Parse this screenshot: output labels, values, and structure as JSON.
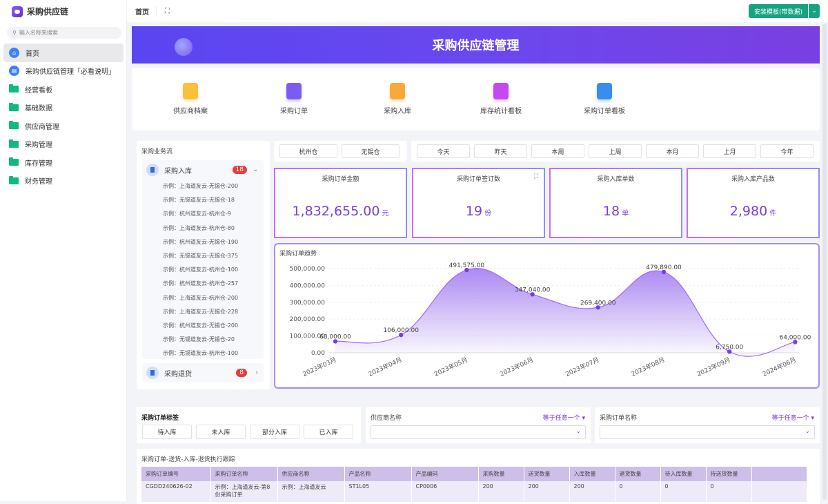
{
  "app": {
    "title": "采购供应链",
    "search_placeholder": "输入名称来搜索"
  },
  "sidebar": {
    "items": [
      {
        "label": "首页",
        "icon": "home-icon",
        "active": true
      },
      {
        "label": "采购供应链管理「必看说明」",
        "icon": "document-icon"
      },
      {
        "label": "经营看板",
        "icon": "folder-icon"
      },
      {
        "label": "基础数据",
        "icon": "folder-icon"
      },
      {
        "label": "供应商管理",
        "icon": "folder-icon"
      },
      {
        "label": "采购管理",
        "icon": "folder-icon"
      },
      {
        "label": "库存管理",
        "icon": "folder-icon"
      },
      {
        "label": "财务管理",
        "icon": "folder-icon"
      }
    ]
  },
  "header": {
    "tab": "首页",
    "install_button": "安装模板(带数据)"
  },
  "banner": {
    "title": "采购供应链管理"
  },
  "quick_links": [
    {
      "label": "供应商档案",
      "color": "#fbbf3c"
    },
    {
      "label": "采购订单",
      "color": "#7c5cf0"
    },
    {
      "label": "采购入库",
      "color": "#f9a93a"
    },
    {
      "label": "库存统计看板",
      "color": "#c449ef"
    },
    {
      "label": "采购订单看板",
      "color": "#3b8cf0"
    }
  ],
  "workflow": {
    "title": "采购业务流",
    "groups": [
      {
        "label": "采购入库",
        "count": "18",
        "items": [
          "示例：上海道友云-无锡仓-200",
          "示例：无锡道友云-无锡仓-18",
          "示例：杭州道友云-杭州仓-9",
          "示例：上海道友云-杭州仓-80",
          "示例：杭州道友云-无锡仓-190",
          "示例：无锡道友云-无锡仓-375",
          "示例：杭州道友云-杭州仓-100",
          "示例：杭州道友云-杭州仓-257",
          "示例：上海道友云-杭州仓-200",
          "示例：上海道友云-无锡仓-228",
          "示例：杭州道友云-无锡仓-200",
          "示例：无锡道友云-无锡仓-20",
          "示例：无锡道友云-杭州仓-100"
        ]
      },
      {
        "label": "采购退货",
        "count": "8"
      }
    ]
  },
  "warehouses": [
    "杭州仓",
    "无锡仓"
  ],
  "periods": [
    "今天",
    "昨天",
    "本周",
    "上周",
    "本月",
    "上月",
    "今年"
  ],
  "kpis": [
    {
      "title": "采购订单金额",
      "value": "1,832,655.00",
      "unit": "元"
    },
    {
      "title": "采购订单签订数",
      "value": "19",
      "unit": "份"
    },
    {
      "title": "采购入库单数",
      "value": "18",
      "unit": "单"
    },
    {
      "title": "采购入库产品数",
      "value": "2,980",
      "unit": "件"
    }
  ],
  "chart_data": {
    "type": "area",
    "title": "采购订单趋势",
    "categories": [
      "2023年03月",
      "2023年04月",
      "2023年05月",
      "2023年06月",
      "2023年07月",
      "2023年08月",
      "2023年09月",
      "2024年06月"
    ],
    "values": [
      68000,
      106000,
      491575,
      347040,
      269400,
      479890,
      6750,
      64000
    ],
    "data_labels": [
      "68,000.00",
      "106,000.00",
      "491,575.00",
      "347,040.00",
      "269,400.00",
      "479,890.00",
      "6,750.00",
      "64,000.00"
    ],
    "yticks": [
      "0.00",
      "100,000.00",
      "200,000.00",
      "300,000.00",
      "400,000.00",
      "500,000.00"
    ],
    "ylim": [
      0,
      500000
    ],
    "grid": true,
    "color": "#7c3aed"
  },
  "tags": {
    "title": "采购订单标签",
    "items": [
      "待入库",
      "未入库",
      "部分入库",
      "已入库"
    ]
  },
  "filters": [
    {
      "label": "供应商名称",
      "operator": "等于任意一个"
    },
    {
      "label": "采购订单名称",
      "operator": "等于任意一个"
    }
  ],
  "table": {
    "title": "采购订单-送货-入库-退货执行跟踪",
    "columns": [
      "采购订单编号",
      "采购订单名称",
      "供应商名称",
      "产品名称",
      "产品编码",
      "采购数量",
      "送货数量",
      "入库数量",
      "退货数量",
      "待入库数量",
      "待送货数量"
    ],
    "rows": [
      [
        "CGDD240626-02",
        "示例：上海道友云-第8份采购订单",
        "示例：上海道友云",
        "ST1L05",
        "CP0006",
        "200",
        "200",
        "200",
        "0",
        "0",
        "0"
      ]
    ]
  }
}
